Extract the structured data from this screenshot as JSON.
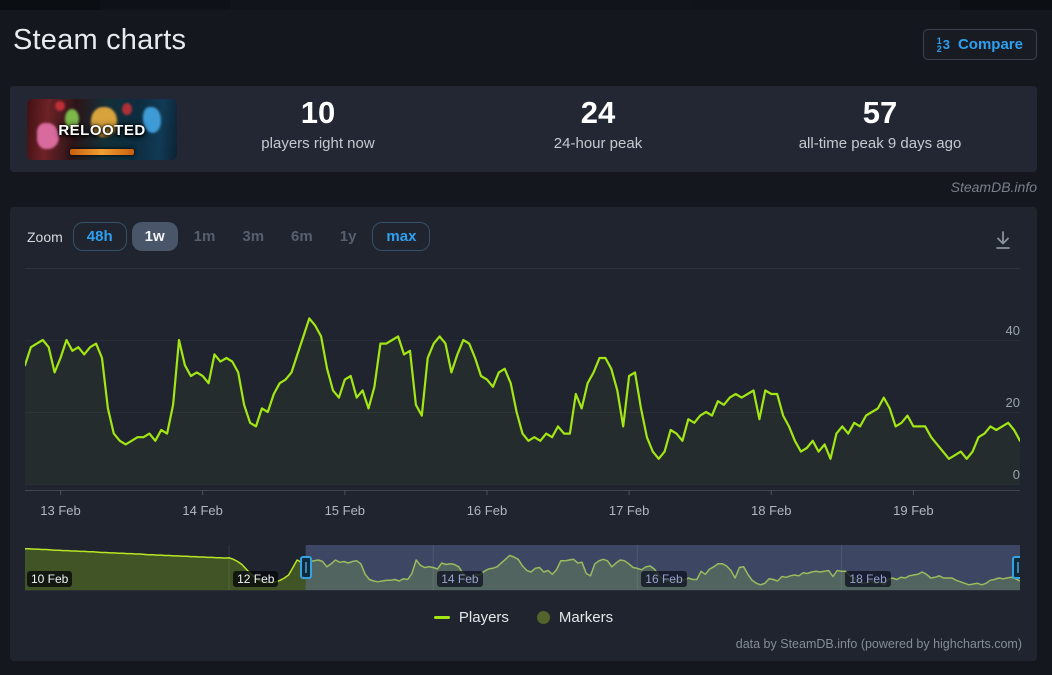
{
  "header": {
    "title": "Steam charts",
    "compare": {
      "label": "Compare"
    }
  },
  "app_banner": {
    "game_logo_text": "RELOOTED"
  },
  "stats": [
    {
      "value": "10",
      "label": "players right now"
    },
    {
      "value": "24",
      "label": "24-hour peak"
    },
    {
      "value": "57",
      "label": "all-time peak 9 days ago"
    }
  ],
  "watermark": "SteamDB.info",
  "toolbar": {
    "zoom_label": "Zoom",
    "ranges": [
      {
        "label": "48h",
        "style": "outlined"
      },
      {
        "label": "1w",
        "style": "selected"
      },
      {
        "label": "1m",
        "style": "plain"
      },
      {
        "label": "3m",
        "style": "plain"
      },
      {
        "label": "6m",
        "style": "plain"
      },
      {
        "label": "1y",
        "style": "plain"
      },
      {
        "label": "max",
        "style": "outlined"
      }
    ]
  },
  "chart_data": {
    "type": "line",
    "title": "",
    "xlabel": "",
    "ylabel": "Players",
    "x_start": "12 Feb 18:00",
    "x_interval": "1 hour",
    "x_tick_labels": [
      "13 Feb",
      "14 Feb",
      "15 Feb",
      "16 Feb",
      "17 Feb",
      "18 Feb",
      "19 Feb"
    ],
    "y_ticks": [
      0,
      20,
      40
    ],
    "ylim": [
      0,
      60
    ],
    "grid": "horizontal",
    "legend_position": "bottom-center",
    "series": [
      {
        "name": "Players",
        "color": "#a2e613",
        "values": [
          33,
          38,
          39,
          40,
          38,
          31,
          35,
          40,
          37,
          38,
          36,
          38,
          39,
          35,
          21,
          14,
          12,
          11,
          12,
          13,
          13,
          14,
          12,
          15,
          14,
          22,
          40,
          33,
          30,
          31,
          30,
          28,
          36,
          34,
          35,
          34,
          31,
          22,
          17,
          16,
          21,
          20,
          25,
          28,
          29,
          31,
          36,
          41,
          46,
          44,
          41,
          32,
          26,
          24,
          29,
          30,
          24,
          26,
          21,
          27,
          39,
          39,
          40,
          41,
          36,
          37,
          22,
          19,
          35,
          39,
          41,
          39,
          31,
          36,
          40,
          39,
          35,
          30,
          29,
          27,
          31,
          32,
          28,
          20,
          14,
          12,
          13,
          12,
          14,
          13,
          16,
          14,
          14,
          25,
          21,
          28,
          31,
          35,
          35,
          32,
          26,
          16,
          30,
          31,
          21,
          13,
          9,
          7,
          9,
          15,
          14,
          12,
          18,
          17,
          19,
          20,
          19,
          23,
          22,
          24,
          25,
          24,
          25,
          26,
          18,
          26,
          25,
          25,
          19,
          16,
          12,
          9,
          10,
          12,
          9,
          11,
          7,
          14,
          16,
          14,
          17,
          16,
          19,
          20,
          21,
          24,
          21,
          16,
          17,
          19,
          16,
          16,
          16,
          13,
          11,
          9,
          7,
          8,
          9,
          7,
          9,
          13,
          14,
          16,
          15,
          16,
          17,
          15,
          12
        ]
      }
    ],
    "legend": [
      {
        "label": "Players",
        "swatch": "line",
        "color": "#a2e613"
      },
      {
        "label": "Markers",
        "swatch": "circle",
        "color": "#52632c"
      }
    ]
  },
  "navigator": {
    "type": "area",
    "x_start": "10 Feb 00:00",
    "x_interval": "1 hour",
    "x_tick_labels": [
      "10 Feb",
      "12 Feb",
      "14 Feb",
      "16 Feb",
      "18 Feb"
    ],
    "line_color": "#b9e524",
    "fill_color": "rgba(166,229,16,0.25)",
    "selection_overlay_color": "rgba(108,124,183,0.40)",
    "selection_start_index": 66,
    "prefix_values": [
      55,
      55,
      54.5,
      54.5,
      54,
      54,
      53.5,
      53,
      53,
      52.5,
      52.5,
      52,
      52,
      51.5,
      51.5,
      51,
      51,
      50.5,
      50,
      50,
      49.5,
      49.5,
      49,
      49,
      48.5,
      48.5,
      48,
      48,
      47.5,
      47,
      47,
      46.5,
      46.5,
      46,
      46,
      45.5,
      45.5,
      45,
      45,
      44.5,
      44.5,
      44,
      44,
      43.5,
      43.5,
      43,
      43,
      42.5,
      43,
      41,
      38,
      34,
      28,
      22,
      17,
      13,
      11,
      10,
      10,
      11,
      13,
      16,
      20,
      30,
      40,
      37
    ]
  },
  "credits": "data by SteamDB.info (powered by highcharts.com)"
}
